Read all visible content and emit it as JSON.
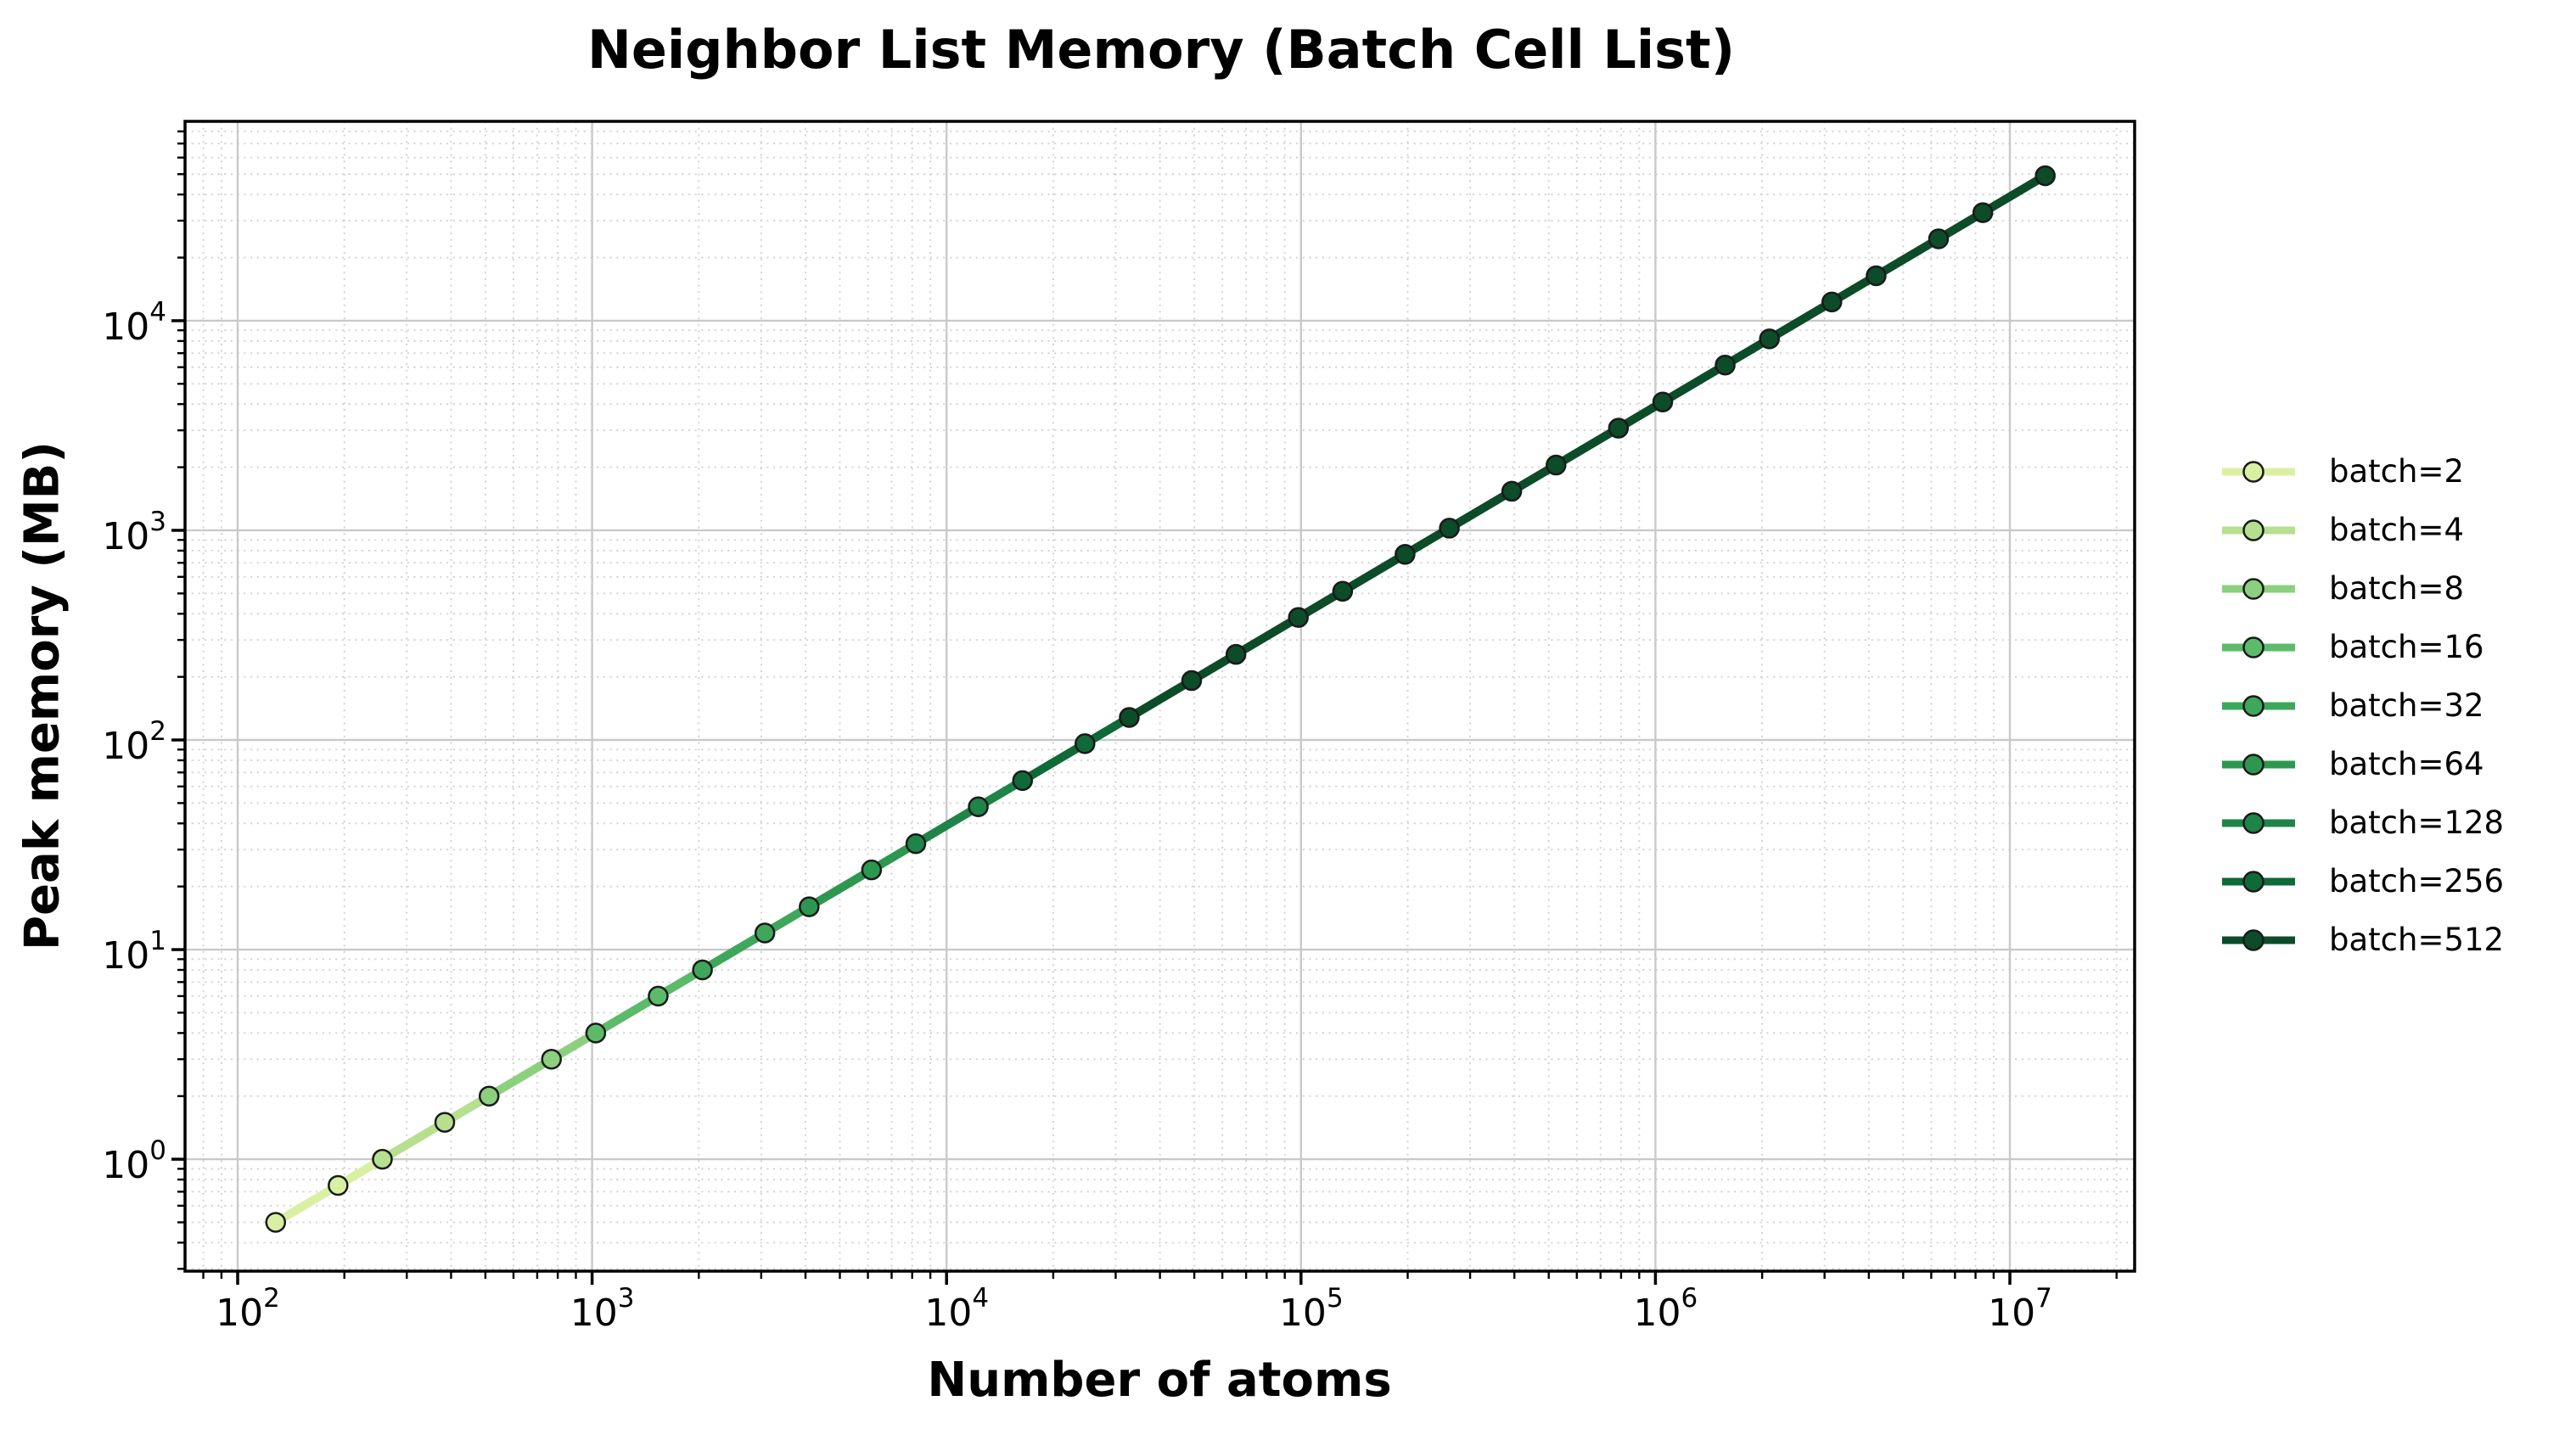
{
  "chart_data": {
    "type": "line",
    "title": "Neighbor List Memory (Batch Cell List)",
    "xlabel": "Number of atoms",
    "ylabel": "Peak memory (MB)",
    "x_scale": "log",
    "y_scale": "log",
    "xlim_log10": [
      1.8515,
      7.352
    ],
    "ylim_log10": [
      -0.534,
      4.951
    ],
    "x_tick_exponents": [
      2,
      3,
      4,
      5,
      6,
      7
    ],
    "y_tick_exponents": [
      0,
      1,
      2,
      3,
      4
    ],
    "tick_base": "10",
    "grid": {
      "major": "solid",
      "minor": "dotted"
    },
    "legend_position": "center right",
    "marker": "circle",
    "marker_edge_color": "#1a1a1a",
    "series": [
      {
        "name": "batch=2",
        "batch": 2,
        "color": "#d9f0a3",
        "points": [
          [
            128,
            0.5
          ],
          [
            192,
            0.75
          ]
        ]
      },
      {
        "name": "batch=4",
        "batch": 4,
        "color": "#b5e08f",
        "points": [
          [
            256,
            1
          ],
          [
            384,
            1.5
          ]
        ]
      },
      {
        "name": "batch=8",
        "batch": 8,
        "color": "#8cd07f",
        "points": [
          [
            512,
            2
          ],
          [
            768,
            3
          ]
        ]
      },
      {
        "name": "batch=16",
        "batch": 16,
        "color": "#5cbb6a",
        "points": [
          [
            1024,
            4
          ],
          [
            1536,
            6
          ]
        ]
      },
      {
        "name": "batch=32",
        "batch": 32,
        "color": "#3ea75b",
        "points": [
          [
            2048,
            8
          ],
          [
            3072,
            12
          ]
        ]
      },
      {
        "name": "batch=64",
        "batch": 64,
        "color": "#2d9750",
        "points": [
          [
            4096,
            16
          ],
          [
            6144,
            24
          ]
        ]
      },
      {
        "name": "batch=128",
        "batch": 128,
        "color": "#1f8447",
        "points": [
          [
            8192,
            32
          ],
          [
            12288,
            48
          ]
        ]
      },
      {
        "name": "batch=256",
        "batch": 256,
        "color": "#0f6a38",
        "points": [
          [
            16384,
            64
          ],
          [
            24576,
            96
          ]
        ]
      },
      {
        "name": "batch=512",
        "batch": 512,
        "color": "#0c4c29",
        "points": [
          [
            32768,
            128
          ],
          [
            49152,
            192
          ],
          [
            65536,
            256
          ],
          [
            98304,
            384
          ],
          [
            131072,
            512
          ],
          [
            196608,
            768
          ],
          [
            262144,
            1024
          ],
          [
            393216,
            1536
          ],
          [
            524288,
            2048
          ],
          [
            786432,
            3072
          ],
          [
            1048576,
            4096
          ],
          [
            1572864,
            6144
          ],
          [
            2097152,
            8192
          ],
          [
            3145728,
            12288
          ],
          [
            4194304,
            16384
          ],
          [
            6291456,
            24576
          ],
          [
            8388608,
            32768
          ],
          [
            12582912,
            49152
          ]
        ]
      }
    ]
  },
  "style": {
    "line_width": 10,
    "marker_radius": 11,
    "marker_edge_width": 2.5,
    "grid_major_color": "#c9c9c9",
    "grid_minor_color": "#d4d4d4",
    "spine_color": "#000000",
    "background": "#ffffff"
  }
}
